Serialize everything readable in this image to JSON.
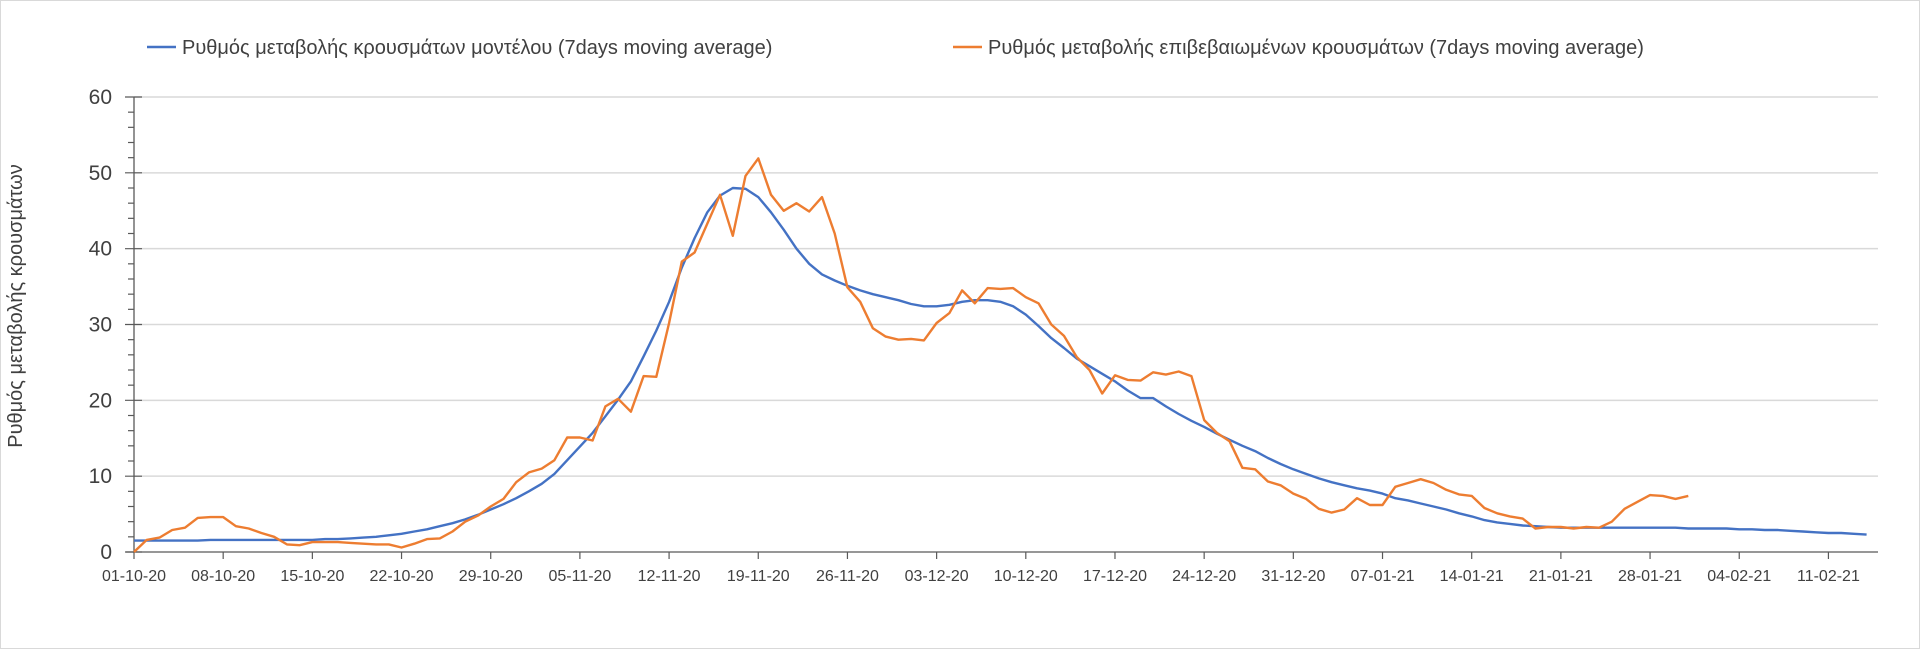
{
  "chart_data": {
    "type": "line",
    "title": "",
    "xlabel": "",
    "ylabel": "Ρυθμός μεταβολής κρουσμάτων",
    "ylim": [
      0,
      60
    ],
    "yticks": [
      0,
      10,
      20,
      30,
      40,
      50,
      60
    ],
    "grid": true,
    "legend_position": "top",
    "x_start_date": "01-10-20",
    "x_days": 137,
    "xtick_labels": [
      "01-10-20",
      "08-10-20",
      "15-10-20",
      "22-10-20",
      "29-10-20",
      "05-11-20",
      "12-11-20",
      "19-11-20",
      "26-11-20",
      "03-12-20",
      "10-12-20",
      "17-12-20",
      "24-12-20",
      "31-12-20",
      "07-01-21",
      "14-01-21",
      "21-01-21",
      "28-01-21",
      "04-02-21",
      "11-02-21"
    ],
    "xtick_step_days": 7,
    "series": [
      {
        "name": "Ρυθμός μεταβολής κρουσμάτων μοντέλου (7days moving average)",
        "color": "#4472c4",
        "values": [
          1.5,
          1.5,
          1.5,
          1.5,
          1.5,
          1.5,
          1.6,
          1.6,
          1.6,
          1.6,
          1.6,
          1.6,
          1.6,
          1.6,
          1.6,
          1.7,
          1.7,
          1.8,
          1.9,
          2.0,
          2.2,
          2.4,
          2.7,
          3.0,
          3.4,
          3.8,
          4.3,
          4.9,
          5.6,
          6.3,
          7.1,
          8.0,
          9.0,
          10.3,
          12.1,
          13.9,
          15.7,
          17.9,
          20.1,
          22.5,
          25.8,
          29.2,
          33.0,
          37.5,
          41.4,
          44.8,
          47.0,
          48.0,
          47.9,
          46.8,
          44.8,
          42.5,
          40.0,
          38.0,
          36.6,
          35.8,
          35.1,
          34.5,
          34.0,
          33.6,
          33.2,
          32.7,
          32.4,
          32.4,
          32.6,
          33.0,
          33.2,
          33.2,
          33.0,
          32.4,
          31.3,
          29.8,
          28.2,
          26.9,
          25.5,
          24.5,
          23.5,
          22.5,
          21.3,
          20.3,
          20.3,
          19.2,
          18.2,
          17.3,
          16.5,
          15.6,
          14.8,
          14.0,
          13.3,
          12.4,
          11.6,
          10.9,
          10.3,
          9.7,
          9.2,
          8.8,
          8.4,
          8.1,
          7.7,
          7.1,
          6.8,
          6.4,
          6.0,
          5.6,
          5.1,
          4.7,
          4.2,
          3.9,
          3.7,
          3.5,
          3.4,
          3.3,
          3.2,
          3.2,
          3.2,
          3.2,
          3.2,
          3.2,
          3.2,
          3.2,
          3.2,
          3.2,
          3.1,
          3.1,
          3.1,
          3.1,
          3.0,
          3.0,
          2.9,
          2.9,
          2.8,
          2.7,
          2.6,
          2.5,
          2.5,
          2.4,
          2.3
        ]
      },
      {
        "name": "Ρυθμός μεταβολής επιβεβαιωμένων κρουσμάτων (7days moving average)",
        "color": "#ed7d31",
        "values": [
          0,
          1.6,
          1.9,
          2.9,
          3.2,
          4.5,
          4.6,
          4.6,
          3.4,
          3.1,
          2.5,
          2.0,
          1.0,
          0.9,
          1.3,
          1.3,
          1.3,
          1.2,
          1.1,
          1.0,
          1.0,
          0.6,
          1.1,
          1.7,
          1.8,
          2.7,
          4.0,
          4.8,
          6.0,
          7.0,
          9.2,
          10.5,
          11.0,
          12.1,
          15.1,
          15.1,
          14.7,
          19.2,
          20.2,
          18.5,
          23.2,
          23.1,
          30.2,
          38.3,
          39.5,
          43.3,
          47.1,
          41.7,
          49.6,
          51.9,
          47.1,
          45.0,
          46.0,
          44.9,
          46.8,
          42.0,
          34.9,
          33.0,
          29.5,
          28.4,
          28.0,
          28.1,
          27.9,
          30.2,
          31.5,
          34.5,
          32.8,
          34.8,
          34.7,
          34.8,
          33.6,
          32.8,
          30.0,
          28.5,
          25.7,
          24.0,
          20.9,
          23.3,
          22.7,
          22.6,
          23.7,
          23.4,
          23.8,
          23.2,
          17.4,
          15.7,
          14.6,
          11.1,
          10.9,
          9.3,
          8.8,
          7.7,
          7.0,
          5.7,
          5.2,
          5.6,
          7.1,
          6.2,
          6.2,
          8.6,
          9.1,
          9.6,
          9.1,
          8.2,
          7.6,
          7.4,
          5.8,
          5.1,
          4.7,
          4.4,
          3.1,
          3.3,
          3.3,
          3.1,
          3.3,
          3.2,
          4.0,
          5.7,
          6.6,
          7.5,
          7.4,
          7.0,
          7.4
        ]
      }
    ]
  }
}
